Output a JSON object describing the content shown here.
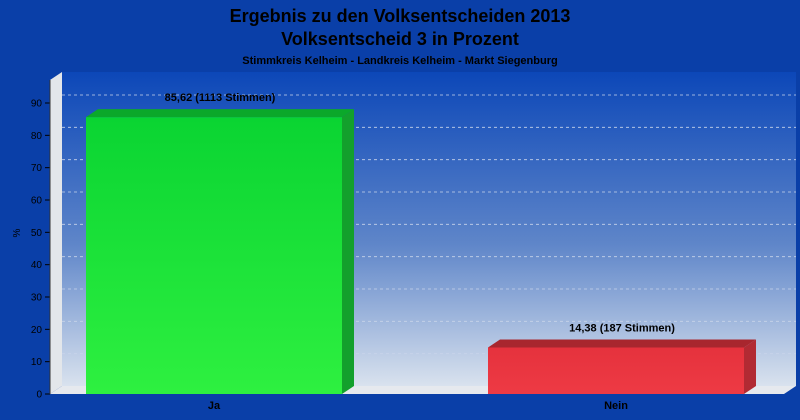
{
  "chart_data": {
    "type": "bar",
    "title": "Ergebnis zu den Volksentscheiden 2013",
    "subtitle": "Volksentscheid 3 in Prozent",
    "caption": "Stimmkreis Kelheim - Landkreis Kelheim - Markt Siegenburg",
    "ylabel": "%",
    "xlabel": "",
    "ylim": [
      0,
      95
    ],
    "yticks": [
      0,
      10,
      20,
      30,
      40,
      50,
      60,
      70,
      80,
      90
    ],
    "grid": true,
    "categories": [
      "Ja",
      "Nein"
    ],
    "values": [
      85.62,
      14.38
    ],
    "data_labels": [
      "85,62 (1113 Stimmen)",
      "14,38 (187 Stimmen)"
    ],
    "colors": {
      "background": "#0a3fa8",
      "Ja": "#22e83a",
      "Nein": "#e8303c"
    }
  }
}
